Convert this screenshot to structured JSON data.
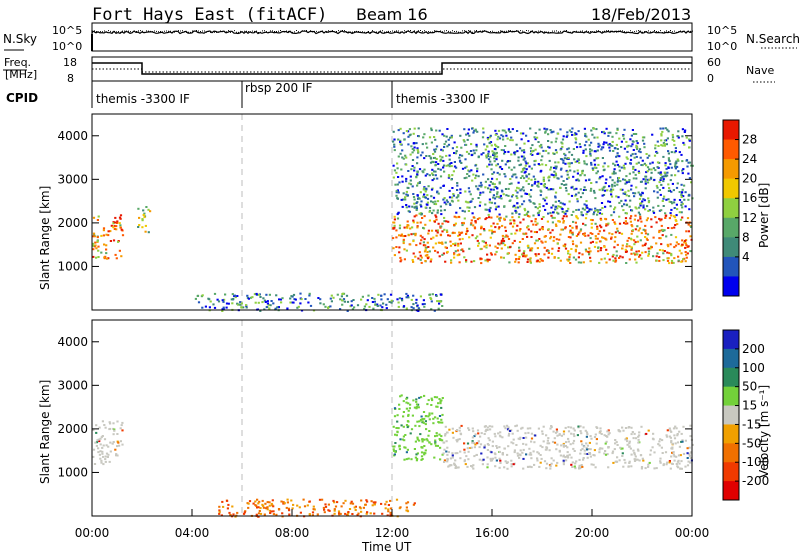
{
  "header": {
    "station": "Fort Hays East (fitACF)",
    "beam": "Beam 16",
    "date": "18/Feb/2013"
  },
  "noise_panel": {
    "left_label": "N.Sky",
    "right_label": "N.Search",
    "left_ticks": [
      "10^5",
      "10^0"
    ],
    "right_ticks": [
      "10^5",
      "10^0"
    ]
  },
  "freq_panel": {
    "left_label_1": "Freq.",
    "left_label_2": "[MHz]",
    "right_label": "Nave",
    "left_ticks": [
      "18",
      "8"
    ],
    "right_ticks": [
      "60",
      "0"
    ],
    "cpid_label": "CPID",
    "cpid_segments": [
      "themis -3300 IF",
      "rbsp 200 IF",
      "themis -3300 IF"
    ],
    "cpid_boundaries_hours": [
      6,
      12
    ]
  },
  "colors": {
    "power_scale": [
      "#0000ee",
      "#2255bb",
      "#3f8a78",
      "#58a868",
      "#8fd040",
      "#f0c800",
      "#f59a00",
      "#ff5a00",
      "#e81800"
    ],
    "velocity_scale": [
      "#1a20c0",
      "#1d6a9a",
      "#2a8a5a",
      "#73d13a",
      "#c8c8c0",
      "#f0a000",
      "#f07000",
      "#f03a00",
      "#e00000"
    ],
    "axis": "#000000",
    "gridline": "#bdbdbd"
  },
  "chart_data": [
    {
      "type": "heatmap",
      "title": "",
      "quantity": "Power",
      "ylabel": "Slant Range [km]",
      "ylim": [
        0,
        4500
      ],
      "xlim": [
        0,
        24
      ],
      "y_ticks": [
        "4000",
        "3000",
        "2000",
        "1000"
      ],
      "colorbar_label": "Power [dB]",
      "colorbar_ticks": [
        "28",
        "24",
        "20",
        "16",
        "12",
        "8",
        "4"
      ],
      "scatter_regions": [
        {
          "x": [
            0.0,
            1.2
          ],
          "y": [
            1200,
            2200
          ],
          "level": "high"
        },
        {
          "x": [
            1.8,
            2.3
          ],
          "y": [
            1800,
            2400
          ],
          "level": "mid"
        },
        {
          "x": [
            12.0,
            24.0
          ],
          "y": [
            1100,
            2200
          ],
          "level": "high"
        },
        {
          "x": [
            12.0,
            24.0
          ],
          "y": [
            2200,
            4200
          ],
          "level": "low"
        },
        {
          "x": [
            4.0,
            14.0
          ],
          "y": [
            0,
            400
          ],
          "level": "low"
        }
      ]
    },
    {
      "type": "heatmap",
      "title": "",
      "quantity": "Velocity",
      "ylabel": "Slant Range [km]",
      "xlabel": "Time UT",
      "ylim": [
        0,
        4500
      ],
      "xlim": [
        0,
        24
      ],
      "y_ticks": [
        "4000",
        "3000",
        "2000",
        "1000"
      ],
      "x_ticks": [
        "00:00",
        "04:00",
        "08:00",
        "12:00",
        "16:00",
        "20:00",
        "00:00"
      ],
      "colorbar_label": "Velocity [m s⁻¹]",
      "colorbar_ticks": [
        "200",
        "100",
        "50",
        "15",
        "-15",
        "-50",
        "-100",
        "-200"
      ],
      "scatter_regions": [
        {
          "x": [
            0.0,
            1.2
          ],
          "y": [
            1200,
            2200
          ],
          "level": "ground"
        },
        {
          "x": [
            12.0,
            14.0
          ],
          "y": [
            1300,
            2800
          ],
          "level": "positive"
        },
        {
          "x": [
            14.0,
            24.0
          ],
          "y": [
            1100,
            2100
          ],
          "level": "ground"
        },
        {
          "x": [
            5.0,
            13.0
          ],
          "y": [
            0,
            400
          ],
          "level": "negative"
        }
      ]
    }
  ]
}
